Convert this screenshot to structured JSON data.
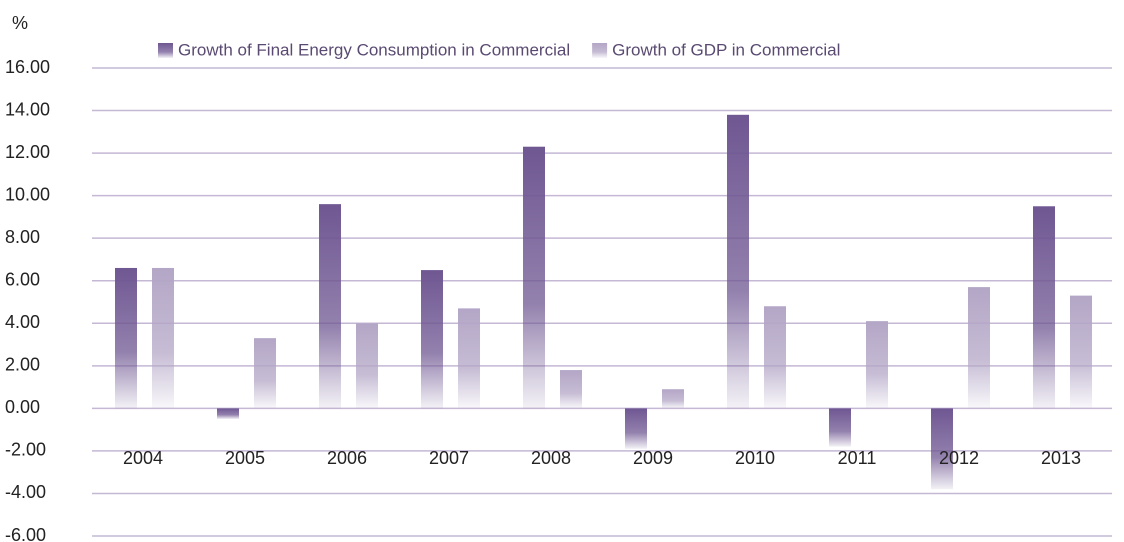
{
  "chart_data": {
    "type": "bar",
    "y_label": "%",
    "categories": [
      "2004",
      "2005",
      "2006",
      "2007",
      "2008",
      "2009",
      "2010",
      "2011",
      "2012",
      "2013"
    ],
    "series": [
      {
        "name": "Growth of Final Energy Consumption in Commercial",
        "color": "#6f5792",
        "values": [
          6.6,
          -0.5,
          9.6,
          6.5,
          12.3,
          -1.9,
          13.8,
          -1.8,
          -3.8,
          9.5
        ]
      },
      {
        "name": "Growth of GDP in Commercial",
        "color": "#b3a6c6",
        "values": [
          6.6,
          3.3,
          4.0,
          4.7,
          1.8,
          0.9,
          4.8,
          4.1,
          5.7,
          5.3
        ]
      }
    ],
    "ylim": [
      -6,
      16
    ],
    "yticks": [
      {
        "value": -6,
        "label": "-6.00"
      },
      {
        "value": -4,
        "label": "-4.00"
      },
      {
        "value": -2,
        "label": "-2.00"
      },
      {
        "value": 0,
        "label": "0.00"
      },
      {
        "value": 2,
        "label": "2.00"
      },
      {
        "value": 4,
        "label": "4.00"
      },
      {
        "value": 6,
        "label": "6.00"
      },
      {
        "value": 8,
        "label": "8.00"
      },
      {
        "value": 10,
        "label": "10.00"
      },
      {
        "value": 12,
        "label": "12.00"
      },
      {
        "value": 14,
        "label": "14.00"
      },
      {
        "value": 16,
        "label": "16.00"
      }
    ],
    "grid": true
  }
}
